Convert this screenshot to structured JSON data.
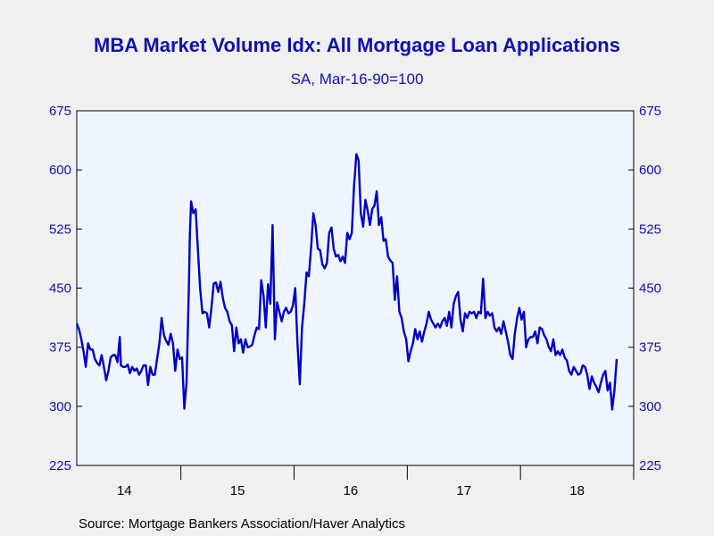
{
  "colors": {
    "line": "#0000c0",
    "axis_text": "#1010b0",
    "plot_bg": "#eef5ff",
    "page_bg": "#f0f0f0"
  },
  "source": "Source:  Mortgage Bankers Association/Haver Analytics",
  "chart_data": {
    "type": "line",
    "title": "MBA Market Volume Idx: All Mortgage Loan Applications",
    "subtitle": "SA, Mar-16-90=100",
    "y_ticks": [
      225,
      300,
      375,
      450,
      525,
      600,
      675
    ],
    "ylim": [
      225,
      675
    ],
    "xlim": [
      2013.58,
      2018.5
    ],
    "x_ticks": [
      2014,
      2015,
      2016,
      2017,
      2018
    ],
    "x_tick_labels": [
      "14",
      "15",
      "16",
      "17",
      "18"
    ],
    "grid": false,
    "series": [
      {
        "values": [
          [
            2013.58,
            405
          ],
          [
            2013.6,
            398
          ],
          [
            2013.62,
            385
          ],
          [
            2013.64,
            370
          ],
          [
            2013.66,
            350
          ],
          [
            2013.68,
            380
          ],
          [
            2013.7,
            372
          ],
          [
            2013.72,
            372
          ],
          [
            2013.74,
            360
          ],
          [
            2013.76,
            355
          ],
          [
            2013.78,
            352
          ],
          [
            2013.8,
            365
          ],
          [
            2013.82,
            350
          ],
          [
            2013.84,
            333
          ],
          [
            2013.86,
            345
          ],
          [
            2013.88,
            362
          ],
          [
            2013.9,
            365
          ],
          [
            2013.92,
            365
          ],
          [
            2013.94,
            356
          ],
          [
            2013.96,
            388
          ],
          [
            2013.97,
            352
          ],
          [
            2013.99,
            350
          ],
          [
            2014.01,
            350
          ],
          [
            2014.03,
            353
          ],
          [
            2014.05,
            342
          ],
          [
            2014.07,
            350
          ],
          [
            2014.09,
            345
          ],
          [
            2014.11,
            348
          ],
          [
            2014.13,
            340
          ],
          [
            2014.15,
            345
          ],
          [
            2014.17,
            352
          ],
          [
            2014.19,
            352
          ],
          [
            2014.21,
            327
          ],
          [
            2014.23,
            350
          ],
          [
            2014.25,
            340
          ],
          [
            2014.27,
            340
          ],
          [
            2014.29,
            360
          ],
          [
            2014.31,
            380
          ],
          [
            2014.33,
            412
          ],
          [
            2014.35,
            390
          ],
          [
            2014.37,
            383
          ],
          [
            2014.39,
            378
          ],
          [
            2014.41,
            392
          ],
          [
            2014.43,
            380
          ],
          [
            2014.45,
            345
          ],
          [
            2014.47,
            372
          ],
          [
            2014.49,
            360
          ],
          [
            2014.51,
            362
          ],
          [
            2014.53,
            297
          ],
          [
            2014.55,
            330
          ],
          [
            2014.57,
            450
          ],
          [
            2014.58,
            520
          ],
          [
            2014.59,
            560
          ],
          [
            2014.61,
            545
          ],
          [
            2014.63,
            550
          ],
          [
            2014.65,
            500
          ],
          [
            2014.67,
            450
          ],
          [
            2014.69,
            418
          ],
          [
            2014.71,
            420
          ],
          [
            2014.73,
            418
          ],
          [
            2014.75,
            400
          ],
          [
            2014.77,
            425
          ],
          [
            2014.79,
            456
          ],
          [
            2014.81,
            457
          ],
          [
            2014.83,
            445
          ],
          [
            2014.85,
            458
          ],
          [
            2014.87,
            438
          ],
          [
            2014.89,
            425
          ],
          [
            2014.91,
            420
          ],
          [
            2014.93,
            408
          ],
          [
            2014.95,
            403
          ],
          [
            2014.97,
            370
          ],
          [
            2014.99,
            400
          ],
          [
            2015.01,
            380
          ],
          [
            2015.03,
            385
          ],
          [
            2015.05,
            368
          ],
          [
            2015.07,
            385
          ],
          [
            2015.09,
            375
          ],
          [
            2015.11,
            376
          ],
          [
            2015.13,
            378
          ],
          [
            2015.15,
            390
          ],
          [
            2015.17,
            400
          ],
          [
            2015.19,
            398
          ],
          [
            2015.21,
            460
          ],
          [
            2015.23,
            440
          ],
          [
            2015.25,
            400
          ],
          [
            2015.27,
            455
          ],
          [
            2015.29,
            430
          ],
          [
            2015.31,
            530
          ],
          [
            2015.33,
            385
          ],
          [
            2015.35,
            432
          ],
          [
            2015.37,
            420
          ],
          [
            2015.39,
            408
          ],
          [
            2015.41,
            420
          ],
          [
            2015.43,
            425
          ],
          [
            2015.45,
            418
          ],
          [
            2015.47,
            420
          ],
          [
            2015.49,
            428
          ],
          [
            2015.51,
            450
          ],
          [
            2015.53,
            380
          ],
          [
            2015.55,
            328
          ],
          [
            2015.57,
            400
          ],
          [
            2015.59,
            430
          ],
          [
            2015.61,
            470
          ],
          [
            2015.63,
            465
          ],
          [
            2015.65,
            500
          ],
          [
            2015.67,
            545
          ],
          [
            2015.69,
            530
          ],
          [
            2015.71,
            500
          ],
          [
            2015.73,
            498
          ],
          [
            2015.75,
            480
          ],
          [
            2015.77,
            475
          ],
          [
            2015.79,
            482
          ],
          [
            2015.81,
            520
          ],
          [
            2015.83,
            527
          ],
          [
            2015.85,
            500
          ],
          [
            2015.87,
            490
          ],
          [
            2015.89,
            492
          ],
          [
            2015.91,
            484
          ],
          [
            2015.93,
            490
          ],
          [
            2015.95,
            482
          ],
          [
            2015.97,
            520
          ],
          [
            2015.99,
            512
          ],
          [
            2016.01,
            520
          ],
          [
            2016.03,
            580
          ],
          [
            2016.05,
            620
          ],
          [
            2016.07,
            612
          ],
          [
            2016.09,
            545
          ],
          [
            2016.11,
            528
          ],
          [
            2016.13,
            562
          ],
          [
            2016.15,
            548
          ],
          [
            2016.17,
            530
          ],
          [
            2016.19,
            550
          ],
          [
            2016.21,
            555
          ],
          [
            2016.23,
            573
          ],
          [
            2016.25,
            530
          ],
          [
            2016.27,
            540
          ],
          [
            2016.29,
            510
          ],
          [
            2016.31,
            512
          ],
          [
            2016.33,
            490
          ],
          [
            2016.35,
            485
          ],
          [
            2016.37,
            482
          ],
          [
            2016.39,
            435
          ],
          [
            2016.41,
            465
          ],
          [
            2016.43,
            420
          ],
          [
            2016.45,
            412
          ],
          [
            2016.47,
            395
          ],
          [
            2016.49,
            385
          ],
          [
            2016.51,
            357
          ],
          [
            2016.53,
            370
          ],
          [
            2016.55,
            380
          ],
          [
            2016.57,
            398
          ],
          [
            2016.59,
            385
          ],
          [
            2016.61,
            395
          ],
          [
            2016.63,
            382
          ],
          [
            2016.65,
            395
          ],
          [
            2016.67,
            405
          ],
          [
            2016.69,
            420
          ],
          [
            2016.71,
            410
          ],
          [
            2016.73,
            405
          ],
          [
            2016.75,
            400
          ],
          [
            2016.77,
            405
          ],
          [
            2016.79,
            400
          ],
          [
            2016.81,
            408
          ],
          [
            2016.83,
            412
          ],
          [
            2016.85,
            402
          ],
          [
            2016.87,
            420
          ],
          [
            2016.89,
            400
          ],
          [
            2016.91,
            430
          ],
          [
            2016.93,
            440
          ],
          [
            2016.95,
            445
          ],
          [
            2016.97,
            410
          ],
          [
            2016.99,
            395
          ],
          [
            2017.01,
            418
          ],
          [
            2017.03,
            412
          ],
          [
            2017.05,
            420
          ],
          [
            2017.07,
            418
          ],
          [
            2017.09,
            420
          ],
          [
            2017.11,
            412
          ],
          [
            2017.13,
            420
          ],
          [
            2017.15,
            418
          ],
          [
            2017.17,
            462
          ],
          [
            2017.19,
            412
          ],
          [
            2017.21,
            420
          ],
          [
            2017.23,
            415
          ],
          [
            2017.25,
            418
          ],
          [
            2017.27,
            400
          ],
          [
            2017.29,
            395
          ],
          [
            2017.31,
            400
          ],
          [
            2017.33,
            392
          ],
          [
            2017.35,
            408
          ],
          [
            2017.37,
            395
          ],
          [
            2017.39,
            382
          ],
          [
            2017.41,
            365
          ],
          [
            2017.43,
            360
          ],
          [
            2017.45,
            392
          ],
          [
            2017.47,
            412
          ],
          [
            2017.49,
            425
          ],
          [
            2017.51,
            410
          ],
          [
            2017.53,
            420
          ],
          [
            2017.55,
            375
          ],
          [
            2017.57,
            385
          ],
          [
            2017.59,
            388
          ],
          [
            2017.61,
            388
          ],
          [
            2017.63,
            395
          ],
          [
            2017.65,
            380
          ],
          [
            2017.67,
            400
          ],
          [
            2017.69,
            398
          ],
          [
            2017.71,
            390
          ],
          [
            2017.73,
            385
          ],
          [
            2017.75,
            375
          ],
          [
            2017.77,
            370
          ],
          [
            2017.79,
            385
          ],
          [
            2017.81,
            365
          ],
          [
            2017.83,
            370
          ],
          [
            2017.85,
            365
          ],
          [
            2017.87,
            372
          ],
          [
            2017.89,
            362
          ],
          [
            2017.91,
            358
          ],
          [
            2017.93,
            345
          ],
          [
            2017.95,
            340
          ],
          [
            2017.97,
            350
          ],
          [
            2017.99,
            345
          ],
          [
            2018.01,
            340
          ],
          [
            2018.03,
            342
          ],
          [
            2018.05,
            352
          ],
          [
            2018.07,
            350
          ],
          [
            2018.09,
            340
          ],
          [
            2018.11,
            322
          ],
          [
            2018.13,
            338
          ],
          [
            2018.15,
            330
          ],
          [
            2018.17,
            325
          ],
          [
            2018.19,
            318
          ],
          [
            2018.21,
            330
          ],
          [
            2018.23,
            340
          ],
          [
            2018.25,
            345
          ],
          [
            2018.27,
            320
          ],
          [
            2018.29,
            330
          ],
          [
            2018.31,
            296
          ],
          [
            2018.33,
            320
          ],
          [
            2018.35,
            360
          ]
        ]
      }
    ]
  }
}
